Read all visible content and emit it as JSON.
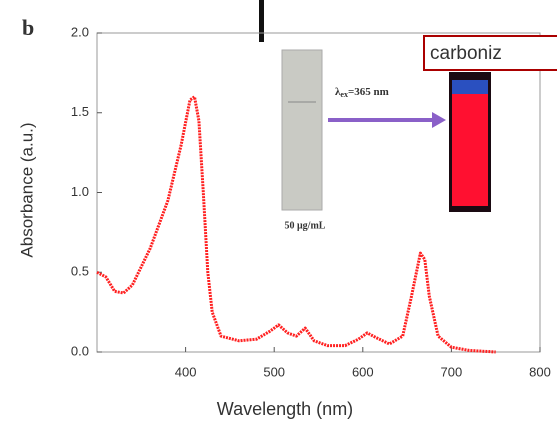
{
  "chart_data": {
    "type": "line",
    "panel_label": "b",
    "x_label": "Wavelength (nm)",
    "y_label": "Absorbance (a.u.)",
    "annotations": {
      "excitation_symbol": "λ",
      "excitation_subscript": "ex",
      "excitation_value": "=365 nm",
      "concentration": "50 μg/mL",
      "overlay_box": "carboniz"
    },
    "x": [
      300,
      310,
      320,
      330,
      340,
      360,
      380,
      395,
      405,
      410,
      415,
      420,
      425,
      430,
      440,
      460,
      480,
      495,
      505,
      515,
      525,
      535,
      545,
      560,
      580,
      595,
      605,
      615,
      630,
      645,
      655,
      665,
      670,
      675,
      685,
      700,
      720,
      750
    ],
    "series": [
      {
        "color": "#ff2020",
        "values": [
          0.5,
          0.47,
          0.38,
          0.37,
          0.42,
          0.65,
          0.95,
          1.3,
          1.58,
          1.6,
          1.45,
          1.0,
          0.5,
          0.25,
          0.1,
          0.07,
          0.08,
          0.13,
          0.17,
          0.12,
          0.1,
          0.15,
          0.07,
          0.04,
          0.04,
          0.08,
          0.12,
          0.09,
          0.05,
          0.1,
          0.35,
          0.62,
          0.58,
          0.35,
          0.1,
          0.03,
          0.01,
          0.0
        ]
      }
    ],
    "xlim": [
      300,
      800
    ],
    "xticks": [
      400,
      500,
      600,
      700,
      800
    ],
    "ylim": [
      0,
      2
    ],
    "yticks": [
      {
        "value": 0,
        "label": "0.0"
      },
      {
        "value": 0.5,
        "label": "0.5"
      },
      {
        "value": 1,
        "label": "1.0"
      },
      {
        "value": 1.5,
        "label": "1.5"
      },
      {
        "value": 2,
        "label": "2.0"
      }
    ]
  }
}
